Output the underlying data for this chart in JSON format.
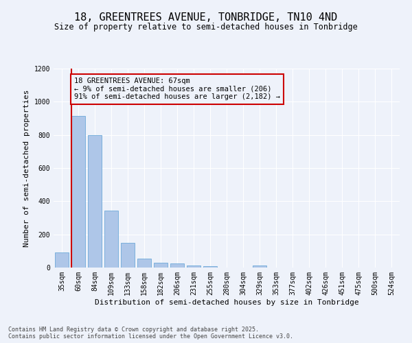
{
  "title": "18, GREENTREES AVENUE, TONBRIDGE, TN10 4ND",
  "subtitle": "Size of property relative to semi-detached houses in Tonbridge",
  "xlabel": "Distribution of semi-detached houses by size in Tonbridge",
  "ylabel": "Number of semi-detached properties",
  "categories": [
    "35sqm",
    "60sqm",
    "84sqm",
    "109sqm",
    "133sqm",
    "158sqm",
    "182sqm",
    "206sqm",
    "231sqm",
    "255sqm",
    "280sqm",
    "304sqm",
    "329sqm",
    "353sqm",
    "377sqm",
    "402sqm",
    "426sqm",
    "451sqm",
    "475sqm",
    "500sqm",
    "524sqm"
  ],
  "values": [
    90,
    915,
    800,
    345,
    150,
    52,
    28,
    26,
    12,
    8,
    0,
    0,
    14,
    0,
    0,
    0,
    0,
    0,
    0,
    0,
    0
  ],
  "bar_color": "#aec6e8",
  "bar_edge_color": "#5a9fd4",
  "highlight_bin_index": 1,
  "highlight_color": "#cc0000",
  "annotation_title": "18 GREENTREES AVENUE: 67sqm",
  "annotation_line1": "← 9% of semi-detached houses are smaller (206)",
  "annotation_line2": "91% of semi-detached houses are larger (2,182) →",
  "annotation_box_color": "#cc0000",
  "ylim": [
    0,
    1200
  ],
  "yticks": [
    0,
    200,
    400,
    600,
    800,
    1000,
    1200
  ],
  "background_color": "#eef2fa",
  "footer_line1": "Contains HM Land Registry data © Crown copyright and database right 2025.",
  "footer_line2": "Contains public sector information licensed under the Open Government Licence v3.0.",
  "title_fontsize": 11,
  "subtitle_fontsize": 8.5,
  "xlabel_fontsize": 8,
  "ylabel_fontsize": 8,
  "tick_fontsize": 7,
  "annotation_fontsize": 7.5,
  "footer_fontsize": 6
}
